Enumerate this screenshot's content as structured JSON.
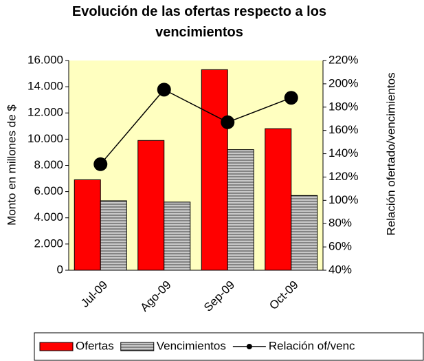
{
  "chart_data": {
    "type": "bar-line",
    "title": "Evolución de las ofertas respecto a los vencimientos",
    "ylabel": "Monto en millones de $",
    "y2label": "Relación ofertado/vencimientos",
    "categories": [
      "Jul-09",
      "Ago-09",
      "Sep-09",
      "Oct-09"
    ],
    "series": [
      {
        "name": "Ofertas",
        "color": "#ff0000",
        "type": "bar",
        "values": [
          6900,
          9900,
          15300,
          10800
        ]
      },
      {
        "name": "Vencimientos",
        "color": "#a0a0a0",
        "type": "bar",
        "values": [
          5300,
          5200,
          9200,
          5700
        ]
      },
      {
        "name": "Relación of/venc",
        "color": "#000000",
        "type": "line",
        "axis": "y2",
        "values": [
          131,
          195,
          167,
          188
        ]
      }
    ],
    "ylim": [
      0,
      16000
    ],
    "yticks": [
      0,
      {
        "value": 2000,
        "label": "2.000"
      },
      {
        "value": 4000,
        "label": "4.000"
      },
      {
        "value": 6000,
        "label": "6.000"
      },
      {
        "value": 8000,
        "label": "8.000"
      },
      {
        "value": 10000,
        "label": "10.000"
      },
      {
        "value": 12000,
        "label": "12.000"
      },
      {
        "value": 14000,
        "label": "14.000"
      },
      {
        "value": 16000,
        "label": "16.000"
      }
    ],
    "y2lim": [
      40,
      220
    ],
    "y2ticks": [
      {
        "value": 40,
        "label": "40%"
      },
      {
        "value": 60,
        "label": "60%"
      },
      {
        "value": 80,
        "label": "80%"
      },
      {
        "value": 100,
        "label": "100%"
      },
      {
        "value": 120,
        "label": "120%"
      },
      {
        "value": 140,
        "label": "140%"
      },
      {
        "value": 160,
        "label": "160%"
      },
      {
        "value": 180,
        "label": "180%"
      },
      {
        "value": 200,
        "label": "200%"
      },
      {
        "value": 220,
        "label": "220%"
      }
    ],
    "plot_background": "#ffffc0"
  }
}
